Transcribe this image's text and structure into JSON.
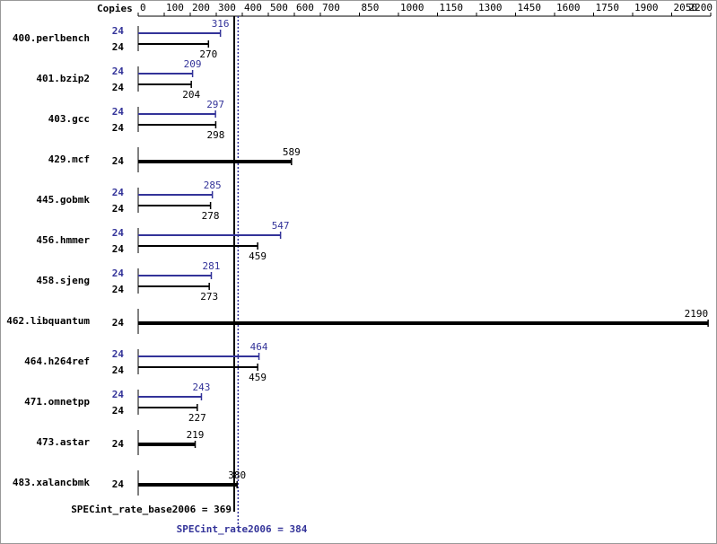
{
  "chart_data": {
    "type": "bar",
    "orientation": "horizontal",
    "copies_header": "Copies",
    "categories": [
      "400.perlbench",
      "401.bzip2",
      "403.gcc",
      "429.mcf",
      "445.gobmk",
      "456.hmmer",
      "458.sjeng",
      "462.libquantum",
      "464.h264ref",
      "471.omnetpp",
      "473.astar",
      "483.xalancbmk"
    ],
    "series": [
      {
        "color": "#333399",
        "copies": [
          "24",
          "24",
          "24",
          null,
          "24",
          "24",
          "24",
          null,
          "24",
          "24",
          null,
          null
        ],
        "values": [
          316,
          209,
          297,
          null,
          285,
          547,
          281,
          null,
          464,
          243,
          null,
          null
        ]
      },
      {
        "color": "#000000",
        "copies": [
          "24",
          "24",
          "24",
          "24",
          "24",
          "24",
          "24",
          "24",
          "24",
          "24",
          "24",
          "24"
        ],
        "values": [
          270,
          204,
          298,
          589,
          278,
          459,
          273,
          2190,
          459,
          227,
          219,
          380
        ]
      }
    ],
    "xlim": [
      0,
      2200
    ],
    "xticks": [
      0,
      100,
      200,
      300,
      400,
      500,
      600,
      700,
      850,
      1000,
      1150,
      1300,
      1450,
      1600,
      1750,
      1900,
      2050,
      2200
    ],
    "reference_lines": [
      {
        "value": 369,
        "label": "SPECint_rate_base2006 = 369",
        "color": "#000000"
      },
      {
        "value": 384,
        "label": "SPECint_rate2006 = 384",
        "color": "#333399"
      }
    ]
  }
}
